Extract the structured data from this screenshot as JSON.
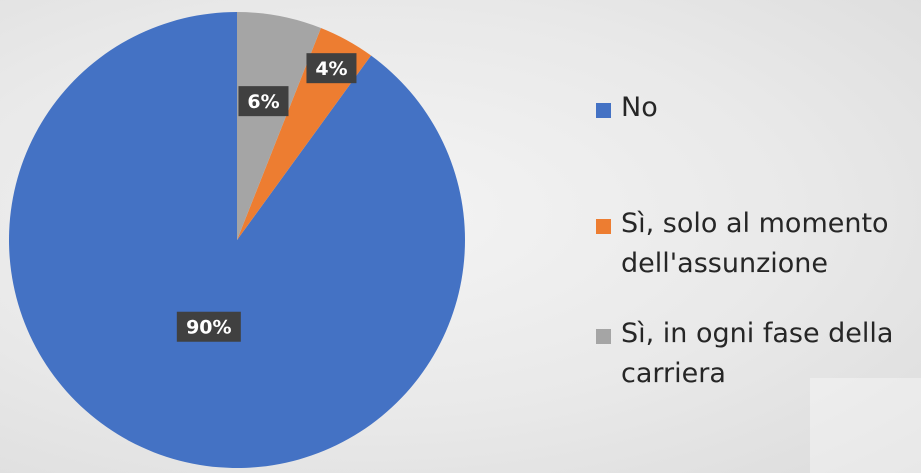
{
  "chart_data": {
    "type": "pie",
    "title": "",
    "slices": [
      {
        "label": "No",
        "value": 90,
        "data_label": "90%",
        "color": "#4472C4"
      },
      {
        "label": "Sì, solo al momento dell'assunzione",
        "value": 4,
        "data_label": "4%",
        "color": "#ED7D31"
      },
      {
        "label": "Sì, in ogni fase della carriera",
        "value": 6,
        "data_label": "6%",
        "color": "#A5A5A5"
      }
    ],
    "legend_position": "right",
    "start_angle": "top",
    "direction": "counterclockwise",
    "label_box_color": "#404040",
    "label_text_color": "#FFFFFF"
  },
  "legend": {
    "items": [
      {
        "label": "No",
        "color": "#4472C4"
      },
      {
        "label": "Sì, solo al momento\ndell'assunzione",
        "color": "#ED7D31"
      },
      {
        "label": "Sì, in ogni fase della\ncarriera",
        "color": "#A5A5A5"
      }
    ]
  }
}
